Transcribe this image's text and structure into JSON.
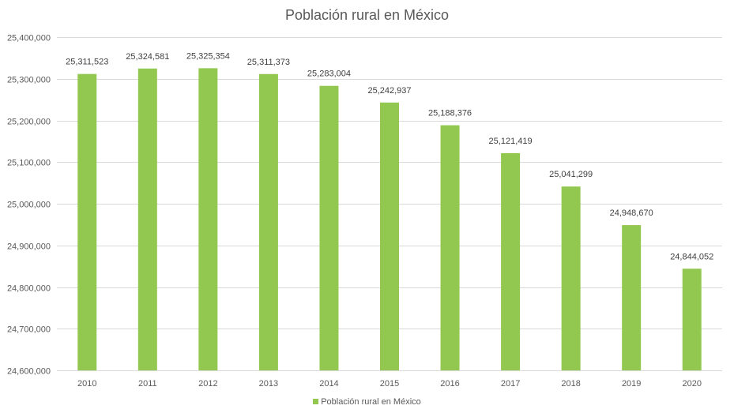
{
  "chart_data": {
    "type": "bar",
    "title": "Población rural en México",
    "categories": [
      "2010",
      "2011",
      "2012",
      "2013",
      "2014",
      "2015",
      "2016",
      "2017",
      "2018",
      "2019",
      "2020"
    ],
    "series": [
      {
        "name": "Población rural en México",
        "values": [
          25311523,
          25324581,
          25325354,
          25311373,
          25283004,
          25242937,
          25188376,
          25121419,
          25041299,
          24948670,
          24844052
        ],
        "data_labels": [
          "25,311,523",
          "25,324,581",
          "25,325,354",
          "25,311,373",
          "25,283,004",
          "25,242,937",
          "25,188,376",
          "25,121,419",
          "25,041,299",
          "24,948,670",
          "24,844,052"
        ]
      }
    ],
    "ylim": [
      24600000,
      25400000
    ],
    "yticks": [
      24600000,
      24700000,
      24800000,
      24900000,
      25000000,
      25100000,
      25200000,
      25300000,
      25400000
    ],
    "ytick_labels": [
      "24,600,000",
      "24,700,000",
      "24,800,000",
      "24,900,000",
      "25,000,000",
      "25,100,000",
      "25,200,000",
      "25,300,000",
      "25,400,000"
    ],
    "xlabel": "",
    "ylabel": "",
    "grid": true,
    "legend": "bottom",
    "colors": {
      "bar": "#92c84f",
      "grid": "#d9d9d9",
      "text": "#595959",
      "label": "#404040"
    }
  }
}
